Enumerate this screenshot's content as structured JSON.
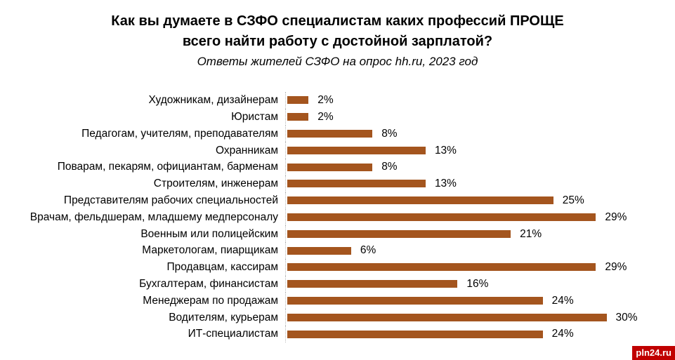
{
  "title": {
    "line1": "Как вы думаете в СЗФО специалистам каких профессий ПРОЩЕ",
    "line2": "всего найти работу с достойной зарплатой?",
    "subtitle": "Ответы жителей СЗФО на опрос hh.ru, 2023 год"
  },
  "watermark": {
    "label": "pln24.ru"
  },
  "colors": {
    "bar": "#A4551E",
    "axis_line": "#b8b8b8",
    "watermark_bg": "#C00000",
    "watermark_text": "#ffffff",
    "text": "#000000"
  },
  "chart_data": {
    "type": "bar",
    "orientation": "horizontal",
    "title": "Как вы думаете в СЗФО специалистам каких профессий ПРОЩЕ всего найти работу с достойной зарплатой?",
    "subtitle": "Ответы жителей СЗФО на опрос hh.ru, 2023 год",
    "xlabel": "",
    "ylabel": "",
    "xlim": [
      0,
      30
    ],
    "grid": false,
    "legend": false,
    "categories": [
      "Художникам, дизайнерам",
      "Юристам",
      "Педагогам, учителям, преподавателям",
      "Охранникам",
      "Поварам, пекарям, официантам, барменам",
      "Строителям, инженерам",
      "Представителям рабочих специальностей",
      "Врачам, фельдшерам, младшему медперсоналу",
      "Военным или полицейским",
      "Маркетологам, пиарщикам",
      "Продавцам, кассирам",
      "Бухгалтерам, финансистам",
      "Менеджерам по продажам",
      "Водителям, курьерам",
      "ИТ-специалистам"
    ],
    "values": [
      2,
      2,
      8,
      13,
      8,
      13,
      25,
      29,
      21,
      6,
      29,
      16,
      24,
      30,
      24
    ],
    "value_labels": [
      "2%",
      "2%",
      "8%",
      "13%",
      "8%",
      "13%",
      "25%",
      "29%",
      "21%",
      "6%",
      "29%",
      "16%",
      "24%",
      "30%",
      "24%"
    ]
  }
}
